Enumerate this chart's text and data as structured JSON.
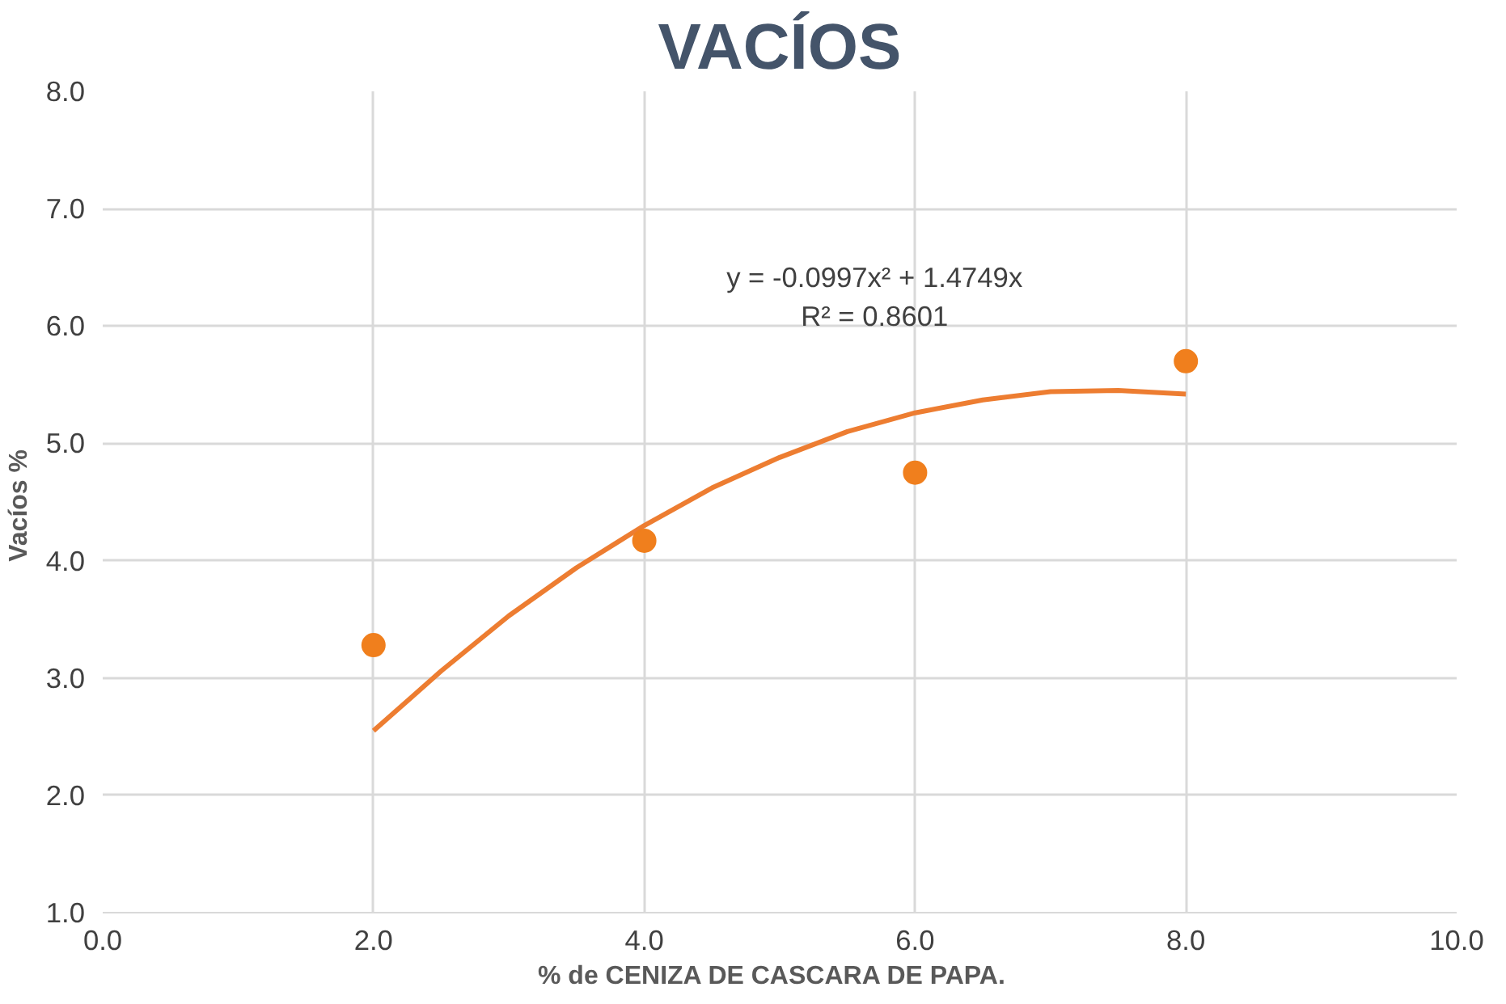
{
  "chart_data": {
    "type": "scatter",
    "title": "VACÍOS",
    "xlabel": "%  de  CENIZA DE CASCARA DE PAPA.",
    "ylabel": "Vacíos  %",
    "series": [
      {
        "color": "#f07f1d",
        "x": [
          2,
          4,
          6,
          8
        ],
        "values": [
          3.28,
          4.17,
          4.75,
          5.7
        ],
        "marker": "circle"
      },
      {
        "type": "line",
        "color": "#ed7d31",
        "x": [
          2,
          2.5,
          3,
          3.5,
          4,
          4.5,
          5,
          5.5,
          6,
          6.5,
          7,
          7.5,
          8
        ],
        "values": [
          2.55,
          3.06,
          3.53,
          3.94,
          4.3,
          4.62,
          4.88,
          5.1,
          5.26,
          5.37,
          5.44,
          5.45,
          5.42
        ]
      }
    ],
    "annotations": [
      "y = -0.0997x² + 1.4749x",
      "R² = 0.8601"
    ],
    "xlim": [
      0,
      10
    ],
    "xticks": [
      {
        "value": 0,
        "label": "0.0"
      },
      {
        "value": 2,
        "label": "2.0"
      },
      {
        "value": 4,
        "label": "4.0"
      },
      {
        "value": 6,
        "label": "6.0"
      },
      {
        "value": 8,
        "label": "8.0"
      },
      {
        "value": 10,
        "label": "10.0"
      }
    ],
    "ylim": [
      1,
      8
    ],
    "yticks": [
      {
        "value": 1,
        "label": "1.0"
      },
      {
        "value": 2,
        "label": "2.0"
      },
      {
        "value": 3,
        "label": "3.0"
      },
      {
        "value": 4,
        "label": "4.0"
      },
      {
        "value": 5,
        "label": "5.0"
      },
      {
        "value": 6,
        "label": "6.0"
      },
      {
        "value": 7,
        "label": "7.0"
      },
      {
        "value": 8,
        "label": "8.0"
      }
    ],
    "grid": true
  }
}
